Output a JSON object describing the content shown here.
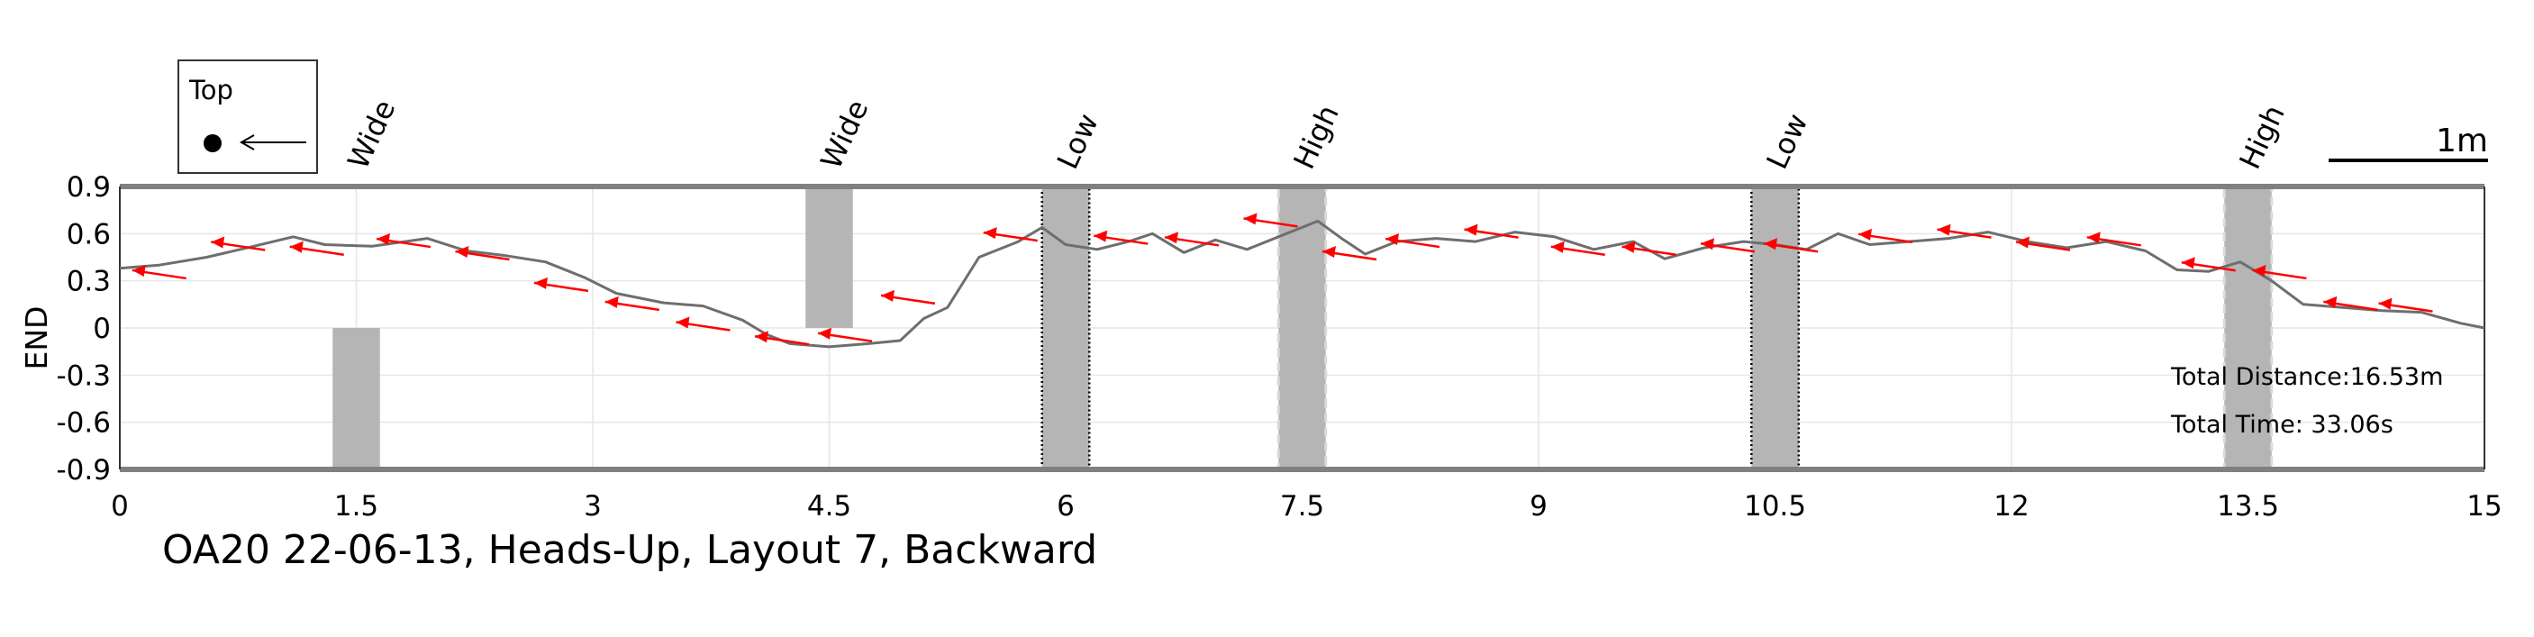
{
  "chart_data": {
    "type": "line",
    "title": "OA20 22-06-13, Heads-Up, Layout 7, Backward",
    "xlabel": "",
    "ylabel": "END",
    "xlim": [
      0,
      15
    ],
    "ylim": [
      -0.9,
      0.9
    ],
    "x_ticks": [
      "0",
      "1.5",
      "3",
      "4.5",
      "6",
      "7.5",
      "9",
      "10.5",
      "12",
      "13.5",
      "15"
    ],
    "y_ticks": [
      "0.9",
      "0.6",
      "0.3",
      "0",
      "-0.3",
      "-0.6",
      "-0.9"
    ],
    "grid": true,
    "series": [
      {
        "color": "#6e6e6e",
        "x": [
          0,
          0.25,
          0.55,
          0.85,
          1.1,
          1.3,
          1.6,
          1.95,
          2.2,
          2.45,
          2.7,
          2.95,
          3.15,
          3.45,
          3.7,
          3.95,
          4.1,
          4.25,
          4.5,
          4.75,
          4.95,
          5.1,
          5.25,
          5.45,
          5.7,
          5.85,
          6.0,
          6.2,
          6.4,
          6.55,
          6.75,
          6.95,
          7.15,
          7.4,
          7.6,
          7.75,
          7.9,
          8.1,
          8.35,
          8.6,
          8.85,
          9.1,
          9.35,
          9.6,
          9.8,
          10.05,
          10.3,
          10.5,
          10.7,
          10.9,
          11.1,
          11.35,
          11.6,
          11.85,
          12.1,
          12.35,
          12.6,
          12.85,
          13.05,
          13.25,
          13.45,
          13.65,
          13.85,
          14.1,
          14.35,
          14.6,
          14.85,
          15.0
        ],
        "y": [
          0.38,
          0.4,
          0.45,
          0.52,
          0.58,
          0.53,
          0.52,
          0.57,
          0.49,
          0.46,
          0.42,
          0.32,
          0.22,
          0.16,
          0.14,
          0.05,
          -0.04,
          -0.1,
          -0.12,
          -0.1,
          -0.08,
          0.06,
          0.13,
          0.45,
          0.55,
          0.64,
          0.53,
          0.5,
          0.55,
          0.6,
          0.48,
          0.56,
          0.5,
          0.6,
          0.68,
          0.57,
          0.47,
          0.55,
          0.57,
          0.55,
          0.61,
          0.58,
          0.5,
          0.55,
          0.44,
          0.51,
          0.55,
          0.53,
          0.5,
          0.6,
          0.53,
          0.55,
          0.57,
          0.61,
          0.55,
          0.51,
          0.55,
          0.49,
          0.37,
          0.36,
          0.42,
          0.3,
          0.15,
          0.13,
          0.11,
          0.1,
          0.03,
          0.0
        ]
      }
    ],
    "arrows": [
      {
        "x": 0.25,
        "y": 0.35
      },
      {
        "x": 0.75,
        "y": 0.53
      },
      {
        "x": 1.25,
        "y": 0.5
      },
      {
        "x": 1.8,
        "y": 0.55
      },
      {
        "x": 2.3,
        "y": 0.47
      },
      {
        "x": 2.8,
        "y": 0.27
      },
      {
        "x": 3.25,
        "y": 0.15
      },
      {
        "x": 3.7,
        "y": 0.02
      },
      {
        "x": 4.2,
        "y": -0.07
      },
      {
        "x": 4.6,
        "y": -0.05
      },
      {
        "x": 5.0,
        "y": 0.19
      },
      {
        "x": 5.65,
        "y": 0.59
      },
      {
        "x": 6.35,
        "y": 0.57
      },
      {
        "x": 6.8,
        "y": 0.56
      },
      {
        "x": 7.3,
        "y": 0.68
      },
      {
        "x": 7.8,
        "y": 0.47
      },
      {
        "x": 8.2,
        "y": 0.55
      },
      {
        "x": 8.7,
        "y": 0.61
      },
      {
        "x": 9.25,
        "y": 0.5
      },
      {
        "x": 9.7,
        "y": 0.5
      },
      {
        "x": 10.2,
        "y": 0.52
      },
      {
        "x": 10.6,
        "y": 0.52
      },
      {
        "x": 11.2,
        "y": 0.58
      },
      {
        "x": 11.7,
        "y": 0.61
      },
      {
        "x": 12.2,
        "y": 0.53
      },
      {
        "x": 12.65,
        "y": 0.56
      },
      {
        "x": 13.25,
        "y": 0.4
      },
      {
        "x": 13.7,
        "y": 0.35
      },
      {
        "x": 14.15,
        "y": 0.15
      },
      {
        "x": 14.5,
        "y": 0.14
      }
    ],
    "arrow_color": "#ff0000",
    "obstacles": [
      {
        "label": "Wide",
        "x_center": 1.5,
        "y_range": [
          -0.9,
          0.0
        ],
        "style": "plain"
      },
      {
        "label": "Wide",
        "x_center": 4.5,
        "y_range": [
          0.0,
          0.9
        ],
        "style": "plain"
      },
      {
        "label": "Low",
        "x_center": 6.0,
        "y_range": [
          -0.9,
          0.9
        ],
        "style": "dotted"
      },
      {
        "label": "High",
        "x_center": 7.5,
        "y_range": [
          -0.9,
          0.9
        ],
        "style": "dashed"
      },
      {
        "label": "Low",
        "x_center": 10.5,
        "y_range": [
          -0.9,
          0.9
        ],
        "style": "dotted"
      },
      {
        "label": "High",
        "x_center": 13.5,
        "y_range": [
          -0.9,
          0.9
        ],
        "style": "dashed"
      }
    ],
    "obstacle_width": 0.3,
    "obstacle_color": "#b5b5b5",
    "legend": {
      "title": "Top",
      "position": "top-left"
    },
    "scale_bar": {
      "label": "1m"
    },
    "annotations": [
      "Total Distance:16.53m",
      "Total Time: 33.06s"
    ]
  }
}
